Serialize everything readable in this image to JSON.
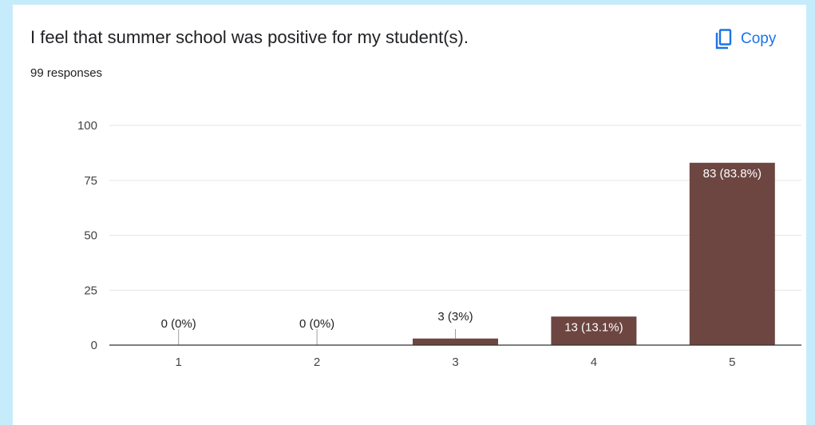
{
  "question": "I feel that summer school was positive for my student(s).",
  "responses": "99 responses",
  "copy_label": "Copy",
  "colors": {
    "bar": "#6d4641",
    "link": "#1a73e8",
    "background": "#c6ecfb"
  },
  "chart_data": {
    "type": "bar",
    "categories": [
      "1",
      "2",
      "3",
      "4",
      "5"
    ],
    "values": [
      0,
      0,
      3,
      13,
      83
    ],
    "labels": [
      "0 (0%)",
      "0 (0%)",
      "3 (3%)",
      "13 (13.1%)",
      "83 (83.8%)"
    ],
    "yticks": [
      "0",
      "25",
      "50",
      "75",
      "100"
    ],
    "ylim": [
      0,
      100
    ],
    "grid": true
  }
}
